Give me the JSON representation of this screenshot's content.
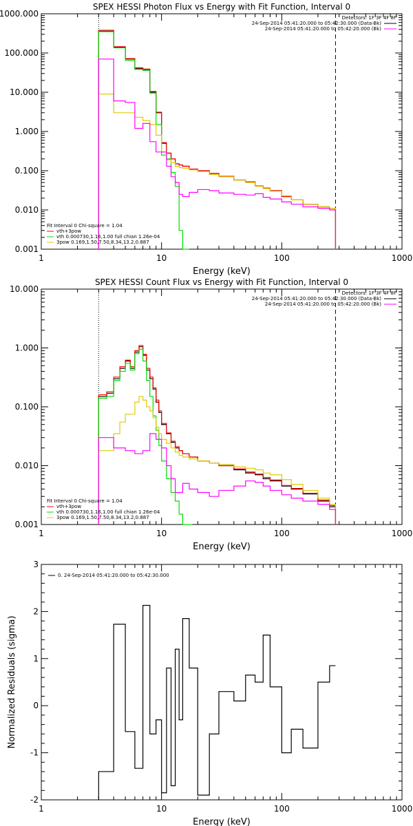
{
  "chart_data": [
    {
      "type": "line",
      "step": true,
      "title": "SPEX HESSI Photon Flux vs Energy with Fit Function, Interval 0",
      "xlabel": "Energy (keV)",
      "ylabel": "",
      "x_scale": "log",
      "y_scale": "log",
      "xlim": [
        1,
        1000
      ],
      "ylim": [
        0.001,
        1000
      ],
      "x_ticks": [
        "1",
        "10",
        "100",
        "1000"
      ],
      "y_ticks": [
        "0.001",
        "0.010",
        "0.100",
        "1.000",
        "10.000",
        "100.000",
        "1000.000"
      ],
      "vlines": [
        {
          "x": 3,
          "style": "dotted"
        },
        {
          "x": 280,
          "style": "dashed"
        }
      ],
      "legend_top_right": [
        "Detectors: 1F 3F 4F 8F",
        "24-Sep-2014 05:41:20.000 to 05:42:30.000 (Data-Bk)",
        "24-Sep-2014 05:41:20.000 to 05:42:20.000 (Bk)"
      ],
      "legend_bottom_left": [
        "Fit Interval  0   Chi-square = 1.04",
        "vth+3pow",
        "vth 0.000730,1.16,1.00  full chian 1.26e-04",
        "3pow 0.169,1.50,7.50,8.34,13.2,0.887"
      ],
      "series": [
        {
          "name": "24-Sep-2014 05:41:20.000 to 05:42:30.000 (Data-Bk)",
          "color": "#000000",
          "edges": [
            3,
            3.5,
            4,
            4.5,
            5,
            5.5,
            6,
            6.5,
            7,
            7.5,
            8,
            8.5,
            9,
            9.5,
            10,
            11,
            12,
            13,
            14,
            15,
            17,
            20,
            25,
            30,
            40,
            50,
            60,
            70,
            80,
            100,
            120,
            150,
            200,
            250,
            280
          ],
          "values": [
            360,
            360,
            140,
            140,
            70,
            70,
            40,
            40,
            38,
            38,
            10,
            10,
            3,
            3,
            0.5,
            0.28,
            0.2,
            0.15,
            0.14,
            0.13,
            0.11,
            0.1,
            0.085,
            0.072,
            0.058,
            0.052,
            0.041,
            0.036,
            0.031,
            0.022,
            0.018,
            0.014,
            0.012,
            0.011
          ]
        },
        {
          "name": "vth+3pow",
          "color": "#ff0000",
          "edges": [
            3,
            3.5,
            4,
            4.5,
            5,
            5.5,
            6,
            6.5,
            7,
            7.5,
            8,
            8.5,
            9,
            9.5,
            10,
            11,
            12,
            13,
            14,
            15,
            17,
            20,
            25,
            30,
            40,
            50,
            60,
            70,
            80,
            100,
            120,
            150,
            200,
            250,
            280
          ],
          "values": [
            380,
            380,
            145,
            145,
            72,
            72,
            42,
            42,
            39,
            39,
            10.5,
            10.5,
            3.1,
            3.1,
            0.52,
            0.28,
            0.2,
            0.15,
            0.14,
            0.13,
            0.11,
            0.1,
            0.085,
            0.072,
            0.058,
            0.052,
            0.041,
            0.036,
            0.031,
            0.022,
            0.018,
            0.014,
            0.012,
            0.011
          ]
        },
        {
          "name": "vth",
          "color": "#00dd00",
          "edges": [
            3,
            3.5,
            4,
            4.5,
            5,
            5.5,
            6,
            6.5,
            7,
            7.5,
            8,
            8.5,
            9,
            9.5,
            10,
            11,
            12,
            13,
            14,
            15,
            17
          ],
          "values": [
            350,
            350,
            135,
            135,
            65,
            65,
            38,
            38,
            36,
            36,
            9.5,
            9.5,
            1.5,
            1.5,
            0.25,
            0.2,
            0.09,
            0.04,
            0.003,
            0.001
          ]
        },
        {
          "name": "3pow",
          "color": "#ddcc00",
          "edges": [
            3,
            3.5,
            4,
            4.5,
            5,
            5.5,
            6,
            6.5,
            7,
            7.5,
            8,
            8.5,
            9,
            9.5,
            10,
            11,
            12,
            13,
            14,
            15,
            17,
            20,
            25,
            30,
            40,
            50,
            60,
            70,
            80,
            100,
            120,
            150,
            200,
            250,
            280
          ],
          "values": [
            9,
            9,
            3,
            3,
            3,
            3,
            2.3,
            2.3,
            1.9,
            1.9,
            1.5,
            1.5,
            0.8,
            0.8,
            0.3,
            0.19,
            0.16,
            0.13,
            0.12,
            0.115,
            0.105,
            0.095,
            0.08,
            0.07,
            0.058,
            0.05,
            0.04,
            0.035,
            0.03,
            0.023,
            0.018,
            0.014,
            0.012,
            0.011
          ]
        },
        {
          "name": "24-Sep-2014 05:41:20.000 to 05:42:20.000 (Bk)",
          "color": "#ff00ff",
          "edges": [
            3,
            3.5,
            4,
            4.5,
            5,
            5.5,
            6,
            6.5,
            7,
            7.5,
            8,
            8.5,
            9,
            9.5,
            10,
            11,
            12,
            13,
            14,
            15,
            17,
            20,
            25,
            30,
            40,
            50,
            60,
            70,
            80,
            100,
            120,
            150,
            200,
            250,
            280
          ],
          "values": [
            70,
            70,
            6,
            6,
            5.5,
            5.5,
            1.2,
            1.2,
            1.6,
            1.6,
            0.55,
            0.55,
            0.3,
            0.3,
            0.3,
            0.13,
            0.07,
            0.05,
            0.025,
            0.022,
            0.028,
            0.033,
            0.031,
            0.027,
            0.025,
            0.024,
            0.026,
            0.021,
            0.019,
            0.016,
            0.014,
            0.012,
            0.011,
            0.01
          ]
        }
      ]
    },
    {
      "type": "line",
      "step": true,
      "title": "SPEX HESSI Count Flux vs Energy with Fit Function, Interval 0",
      "xlabel": "Energy (keV)",
      "ylabel": "",
      "x_scale": "log",
      "y_scale": "log",
      "xlim": [
        1,
        1000
      ],
      "ylim": [
        0.001,
        10
      ],
      "x_ticks": [
        "1",
        "10",
        "100",
        "1000"
      ],
      "y_ticks": [
        "0.001",
        "0.010",
        "0.100",
        "1.000",
        "10.000"
      ],
      "vlines": [
        {
          "x": 3,
          "style": "dotted"
        },
        {
          "x": 280,
          "style": "dashed"
        }
      ],
      "legend_top_right": [
        "Detectors: 1F 3F 4F 8F",
        "24-Sep-2014 05:41:20.000 to 05:42:30.000 (Data-Bk)",
        "24-Sep-2014 05:41:20.000 to 05:42:20.000 (Bk)"
      ],
      "legend_bottom_left": [
        "Fit Interval  0   Chi-square = 1.04",
        "vth+3pow",
        "vth 0.000730,1.16,1.00  full chian 1.26e-04",
        "3pow 0.169,1.50,7.50,8.34,13.2,0.887"
      ],
      "series": [
        {
          "name": "24-Sep-2014 05:41:20.000 to 05:42:30.000 (Data-Bk)",
          "color": "#000000",
          "edges": [
            3,
            3.5,
            4,
            4.5,
            5,
            5.5,
            6,
            6.5,
            7,
            7.5,
            8,
            8.5,
            9,
            9.5,
            10,
            11,
            12,
            13,
            14,
            15,
            17,
            20,
            25,
            30,
            40,
            50,
            60,
            70,
            80,
            100,
            120,
            150,
            200,
            250,
            280
          ],
          "values": [
            0.15,
            0.17,
            0.3,
            0.45,
            0.6,
            0.45,
            0.85,
            1.05,
            0.75,
            0.42,
            0.3,
            0.2,
            0.12,
            0.08,
            0.05,
            0.035,
            0.025,
            0.02,
            0.018,
            0.016,
            0.014,
            0.012,
            0.011,
            0.01,
            0.0085,
            0.0075,
            0.007,
            0.006,
            0.0055,
            0.0045,
            0.004,
            0.0033,
            0.0025,
            0.002
          ]
        },
        {
          "name": "vth+3pow",
          "color": "#ff0000",
          "edges": [
            3,
            3.5,
            4,
            4.5,
            5,
            5.5,
            6,
            6.5,
            7,
            7.5,
            8,
            8.5,
            9,
            9.5,
            10,
            11,
            12,
            13,
            14,
            15,
            17,
            20,
            25,
            30,
            40,
            50,
            60,
            70,
            80,
            100,
            120,
            150,
            200,
            250,
            280
          ],
          "values": [
            0.16,
            0.18,
            0.32,
            0.48,
            0.62,
            0.48,
            0.9,
            1.1,
            0.78,
            0.45,
            0.32,
            0.21,
            0.13,
            0.085,
            0.052,
            0.036,
            0.026,
            0.021,
            0.018,
            0.016,
            0.014,
            0.012,
            0.011,
            0.01,
            0.0088,
            0.0078,
            0.0072,
            0.0063,
            0.0057,
            0.0046,
            0.0041,
            0.0034,
            0.0026,
            0.0021
          ]
        },
        {
          "name": "vth",
          "color": "#00dd00",
          "edges": [
            3,
            3.5,
            4,
            4.5,
            5,
            5.5,
            6,
            6.5,
            7,
            7.5,
            8,
            8.5,
            9,
            9.5,
            10,
            11,
            12,
            13,
            14,
            15,
            17,
            18
          ],
          "values": [
            0.14,
            0.15,
            0.28,
            0.4,
            0.55,
            0.42,
            0.8,
            0.95,
            0.6,
            0.28,
            0.15,
            0.07,
            0.04,
            0.022,
            0.012,
            0.006,
            0.0035,
            0.0025,
            0.0015,
            0.001,
            0.001
          ]
        },
        {
          "name": "3pow",
          "color": "#ddcc00",
          "edges": [
            3,
            3.5,
            4,
            4.5,
            5,
            5.5,
            6,
            6.5,
            7,
            7.5,
            8,
            8.5,
            9,
            9.5,
            10,
            11,
            12,
            13,
            14,
            15,
            17,
            20,
            25,
            30,
            40,
            50,
            60,
            70,
            80,
            100,
            120,
            150,
            200,
            250,
            280
          ],
          "values": [
            0.018,
            0.018,
            0.035,
            0.055,
            0.075,
            0.075,
            0.12,
            0.15,
            0.13,
            0.1,
            0.085,
            0.065,
            0.045,
            0.035,
            0.028,
            0.024,
            0.02,
            0.017,
            0.015,
            0.014,
            0.013,
            0.012,
            0.011,
            0.0105,
            0.0095,
            0.009,
            0.0085,
            0.0075,
            0.007,
            0.0058,
            0.0048,
            0.0038,
            0.0028,
            0.0022
          ]
        },
        {
          "name": "24-Sep-2014 05:41:20.000 to 05:42:20.000 (Bk)",
          "color": "#ff00ff",
          "edges": [
            3,
            3.5,
            4,
            4.5,
            5,
            5.5,
            6,
            6.5,
            7,
            7.5,
            8,
            8.5,
            9,
            9.5,
            10,
            11,
            12,
            13,
            14,
            15,
            17,
            20,
            25,
            30,
            40,
            50,
            60,
            70,
            80,
            100,
            120,
            150,
            200,
            250,
            280
          ],
          "values": [
            0.03,
            0.03,
            0.02,
            0.02,
            0.018,
            0.018,
            0.016,
            0.016,
            0.018,
            0.018,
            0.035,
            0.035,
            0.028,
            0.028,
            0.02,
            0.01,
            0.006,
            0.0035,
            0.0035,
            0.005,
            0.004,
            0.0035,
            0.003,
            0.0038,
            0.0045,
            0.0055,
            0.0052,
            0.0045,
            0.0038,
            0.0032,
            0.0028,
            0.0025,
            0.0022,
            0.0018
          ]
        }
      ]
    },
    {
      "type": "line",
      "step": true,
      "title": "",
      "xlabel": "Energy (keV)",
      "ylabel": "Normalized Residuals (sigma)",
      "x_scale": "log",
      "y_scale": "linear",
      "xlim": [
        1,
        1000
      ],
      "ylim": [
        -2,
        3
      ],
      "x_ticks": [
        "1",
        "10",
        "100",
        "1000"
      ],
      "y_ticks": [
        "-2",
        "-1",
        "0",
        "1",
        "2",
        "3"
      ],
      "legend_top_left": [
        "0. 24-Sep-2014 05:41:20.000 to 05:42:30.000"
      ],
      "series": [
        {
          "name": "0. 24-Sep-2014 05:41:20.000 to 05:42:30.000",
          "color": "#000000",
          "edges": [
            3,
            3.5,
            4,
            4.5,
            5,
            5.5,
            6,
            6.5,
            7,
            7.5,
            8,
            8.5,
            9,
            9.5,
            10,
            11,
            12,
            13,
            14,
            15,
            17,
            20,
            25,
            30,
            40,
            50,
            60,
            70,
            80,
            100,
            120,
            150,
            200,
            250,
            280
          ],
          "values": [
            -1.4,
            -1.4,
            1.73,
            1.73,
            -0.55,
            -0.55,
            -1.33,
            -1.33,
            2.13,
            2.13,
            -0.6,
            -0.6,
            -0.3,
            -0.3,
            -1.85,
            0.8,
            -1.7,
            1.2,
            -0.3,
            1.85,
            0.8,
            -1.9,
            -0.6,
            0.3,
            0.1,
            0.65,
            0.5,
            1.5,
            0.4,
            -1,
            -0.5,
            -0.9,
            0.5,
            0.85
          ]
        }
      ]
    }
  ]
}
